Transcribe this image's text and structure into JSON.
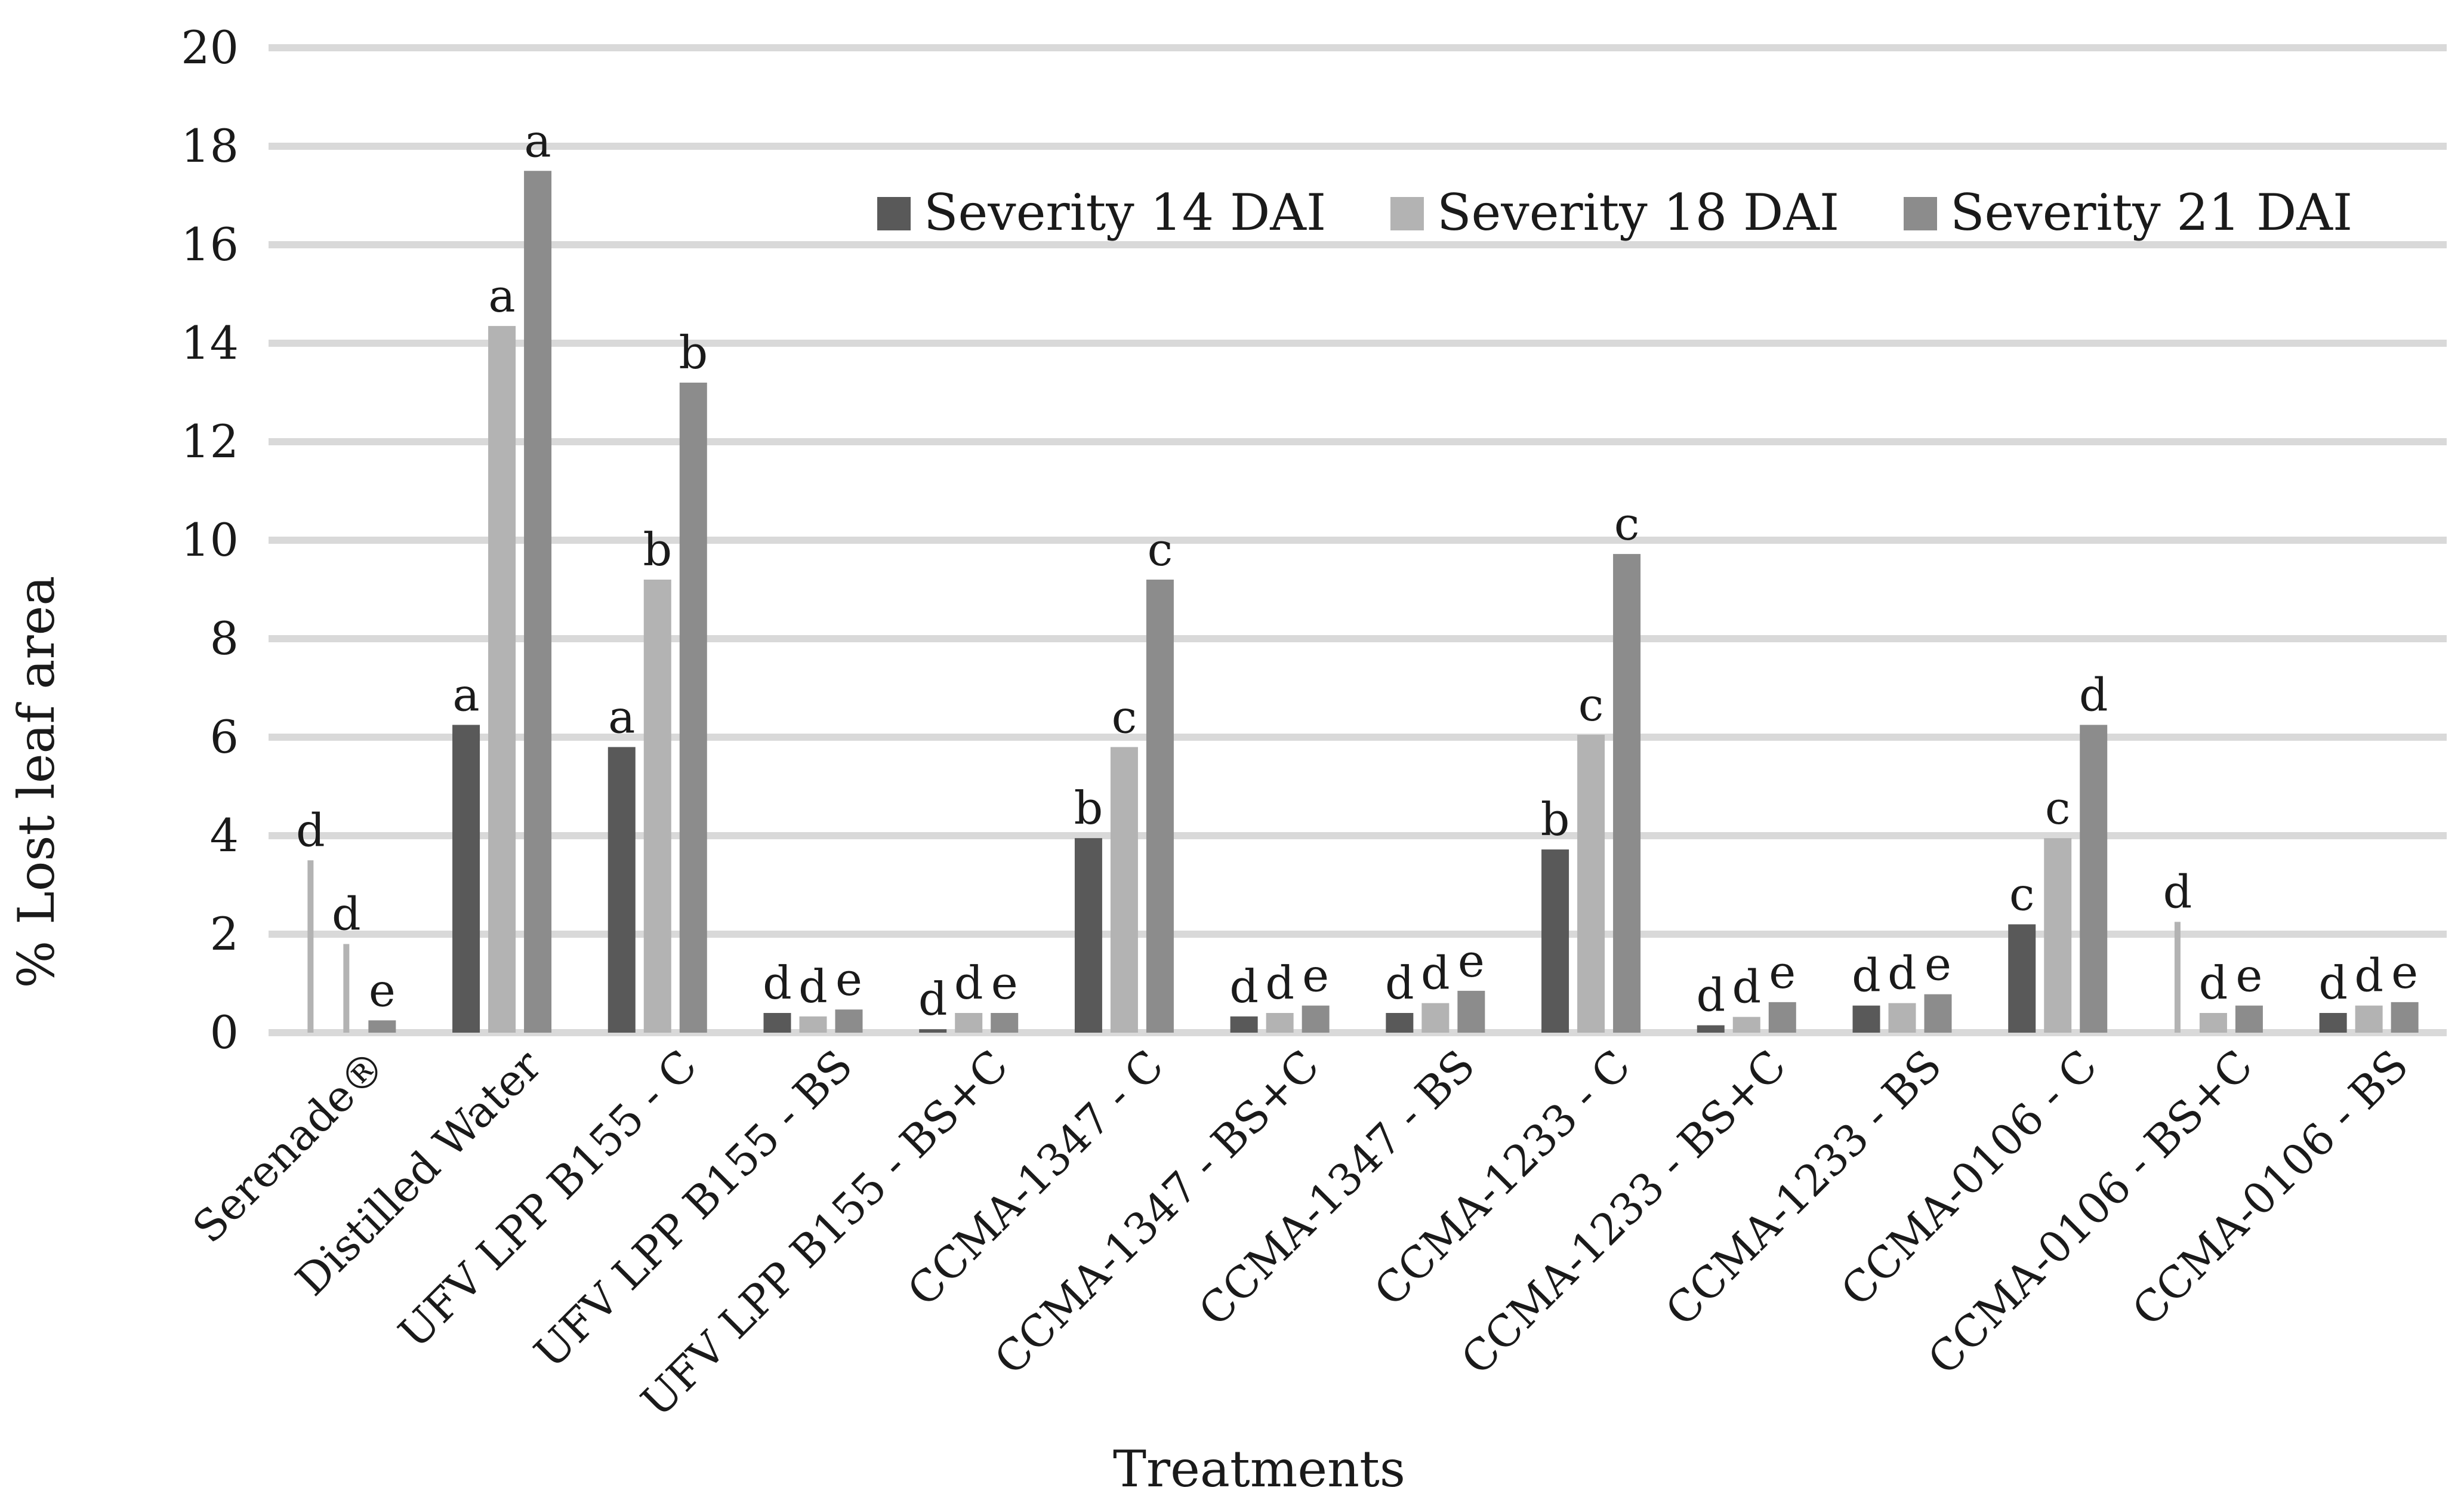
{
  "chart_data": {
    "type": "bar",
    "title": "",
    "xlabel": "Treatments",
    "ylabel": "% Lost leaf area",
    "ylim": [
      0,
      20
    ],
    "yticks": [
      0,
      2,
      4,
      6,
      8,
      10,
      12,
      14,
      16,
      18,
      20
    ],
    "grid": true,
    "legend_position": "top-right",
    "categories": [
      "Serenade®",
      "Distilled Water",
      "UFV LPP B155 - C",
      "UFV LPP B155 - BS",
      "UFV LPP B155 - BS+C",
      "CCMA-1347 - C",
      "CCMA-1347 - BS+C",
      "CCMA-1347 - BS",
      "CCMA-1233 - C",
      "CCMA-1233 - BS+C",
      "CCMA-1233 - BS",
      "CCMA-0106 - C",
      "CCMA-0106 - BS+C",
      "CCMA-0106 - BS"
    ],
    "series": [
      {
        "name": "Severity 14 DAI",
        "color": "#595959",
        "values": [
          0,
          6.25,
          5.8,
          0.4,
          0.07,
          3.95,
          0.33,
          0.4,
          3.72,
          0.15,
          0.55,
          2.2,
          0,
          0.4
        ],
        "labels": [
          "d",
          "a",
          "a",
          "d",
          "d",
          "b",
          "d",
          "d",
          "b",
          "d",
          "d",
          "c",
          "d",
          "d"
        ]
      },
      {
        "name": "Severity 18 DAI",
        "color": "#b3b3b3",
        "values": [
          0,
          14.35,
          9.2,
          0.33,
          0.4,
          5.8,
          0.4,
          0.6,
          6.05,
          0.32,
          0.6,
          3.95,
          0.4,
          0.55
        ],
        "labels": [
          "d",
          "a",
          "b",
          "d",
          "d",
          "c",
          "d",
          "d",
          "c",
          "d",
          "d",
          "c",
          "d",
          "d"
        ]
      },
      {
        "name": "Severity 21 DAI",
        "color": "#8c8c8c",
        "values": [
          0.25,
          17.5,
          13.2,
          0.47,
          0.4,
          9.2,
          0.55,
          0.85,
          9.72,
          0.62,
          0.78,
          6.25,
          0.55,
          0.62
        ],
        "labels": [
          "e",
          "a",
          "b",
          "e",
          "e",
          "c",
          "e",
          "e",
          "c",
          "e",
          "e",
          "d",
          "e",
          "e"
        ]
      }
    ],
    "error_bars": [
      {
        "category_index": 0,
        "series_index": 0,
        "value": 3.5,
        "color": "#b3b3b3"
      },
      {
        "category_index": 0,
        "series_index": 1,
        "value": 1.8,
        "color": "#b3b3b3"
      },
      {
        "category_index": 12,
        "series_index": 0,
        "value": 2.25,
        "color": "#b3b3b3"
      }
    ]
  }
}
